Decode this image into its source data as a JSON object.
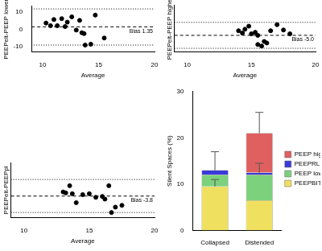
{
  "chart_data": [
    {
      "type": "scatter",
      "x_label": "Average",
      "y_label": "PEEPelt-PEEP lower",
      "x": [
        10.3,
        10.7,
        11.0,
        11.3,
        11.7,
        12.0,
        12.2,
        12.6,
        13.0,
        13.3,
        13.5,
        13.7,
        13.8,
        14.3,
        14.7,
        15.5
      ],
      "values": [
        3.5,
        2.0,
        5.5,
        2.0,
        6.0,
        1.5,
        4.0,
        7.0,
        -0.5,
        5.0,
        -2.0,
        -2.5,
        -9.0,
        -8.5,
        8.0,
        -5.0
      ],
      "color": "#000000",
      "xlim": [
        9,
        20
      ],
      "xticks": [
        10,
        15,
        20
      ],
      "ylim": [
        -13,
        13
      ],
      "yticks": [
        -10,
        0,
        10
      ],
      "bias": {
        "value": 1.35,
        "label": "Bias 1.35"
      },
      "limits": [
        -9,
        11.5
      ],
      "grid": false
    },
    {
      "type": "scatter",
      "x_label": "Average",
      "y_label": "PEEPelt-PEEP higher",
      "x": [
        14.0,
        14.3,
        14.5,
        14.8,
        15.0,
        15.3,
        15.5,
        15.5,
        15.8,
        16.0,
        16.2,
        16.5,
        17.0,
        17.5,
        18.0
      ],
      "values": [
        -2.0,
        -3.5,
        -1.0,
        1.0,
        -4.0,
        -3.0,
        -5.0,
        -11.0,
        -12.0,
        -9.0,
        -10.0,
        -2.0,
        2.0,
        -1.5,
        -4.0
      ],
      "color": "#000000",
      "xlim": [
        9,
        20
      ],
      "xticks": [
        10,
        15,
        20
      ],
      "ylim": [
        -16,
        15
      ],
      "bias": {
        "value": -5.0,
        "label": "Bias -5.0"
      },
      "limits": [
        -13.5,
        3.5
      ],
      "grid": false,
      "tick_labels": "x"
    },
    {
      "type": "scatter",
      "x_label": "Average",
      "y_label": "PEEPelt-PEEPpl",
      "x": [
        13.0,
        13.2,
        13.5,
        13.7,
        14.0,
        14.5,
        15.0,
        15.5,
        16.0,
        16.2,
        16.5,
        16.7,
        17.0,
        17.5
      ],
      "values": [
        -1.5,
        -2.0,
        2.0,
        -2.5,
        -7.5,
        -3.0,
        -2.5,
        -4.5,
        -4.0,
        -5.5,
        2.0,
        -13.0,
        -10.0,
        -9.0
      ],
      "color": "#000000",
      "xlim": [
        9,
        20
      ],
      "xticks": [
        10,
        15,
        20
      ],
      "ylim": [
        -16,
        15
      ],
      "bias": {
        "value": -3.8,
        "label": "Bias -3.8"
      },
      "limits": [
        -13,
        5.5
      ],
      "grid": false,
      "tick_labels": "x"
    },
    {
      "type": "bar",
      "y_label": "Silent Spaces (%)",
      "categories": [
        "Collapsed",
        "Distended"
      ],
      "series": [
        {
          "name": "PEEPBIT",
          "color": "#f0e060",
          "values": [
            9.5,
            6.5
          ],
          "errors": [
            1.5,
            null
          ]
        },
        {
          "name": "PEEP lower",
          "color": "#7cd17c",
          "values": [
            2.5,
            5.5
          ],
          "errors": [
            null,
            2.5
          ]
        },
        {
          "name": "PEEPRL",
          "color": "#3a3ad8",
          "values": [
            1.0,
            0.5
          ],
          "errors": [
            4.0,
            null
          ]
        },
        {
          "name": "PEEP higher",
          "color": "#e06060",
          "values": [
            0,
            8.5
          ],
          "errors": [
            null,
            4.5
          ]
        }
      ],
      "stacked": true,
      "legend": "right",
      "ylim": [
        0,
        30
      ],
      "yticks": [
        0,
        10,
        20,
        30
      ],
      "grid": false
    }
  ]
}
